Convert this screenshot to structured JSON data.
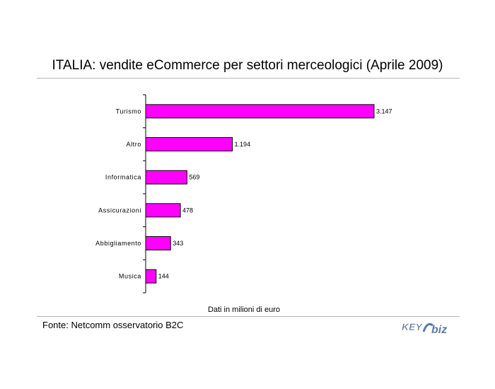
{
  "title": "ITALIA: vendite eCommerce per settori merceologici (Aprile 2009)",
  "note": "Dati in milioni di euro",
  "source": "Fonte: Netcomm osservatorio B2C",
  "logo": {
    "text_left": "KEY",
    "text_right": "biz"
  },
  "colors": {
    "bar": "#ff00ff",
    "bar_stroke": "#000000",
    "rule": "#b5b5b5",
    "logo": "#5a7ba8"
  },
  "chart_data": {
    "type": "bar",
    "orientation": "horizontal",
    "title": "ITALIA: vendite eCommerce per settori merceologici (Aprile 2009)",
    "xlabel": "Dati in milioni di euro",
    "ylabel": "",
    "categories": [
      "Turismo",
      "Altro",
      "Informatica",
      "Assicurazioni",
      "Abbigliamento",
      "Musica"
    ],
    "values": [
      3147,
      1194,
      569,
      478,
      343,
      144
    ],
    "value_labels": [
      "3.147",
      "1.194",
      "569",
      "478",
      "343",
      "144"
    ],
    "xlim": [
      0,
      3147
    ],
    "grid": false,
    "legend": "none"
  }
}
